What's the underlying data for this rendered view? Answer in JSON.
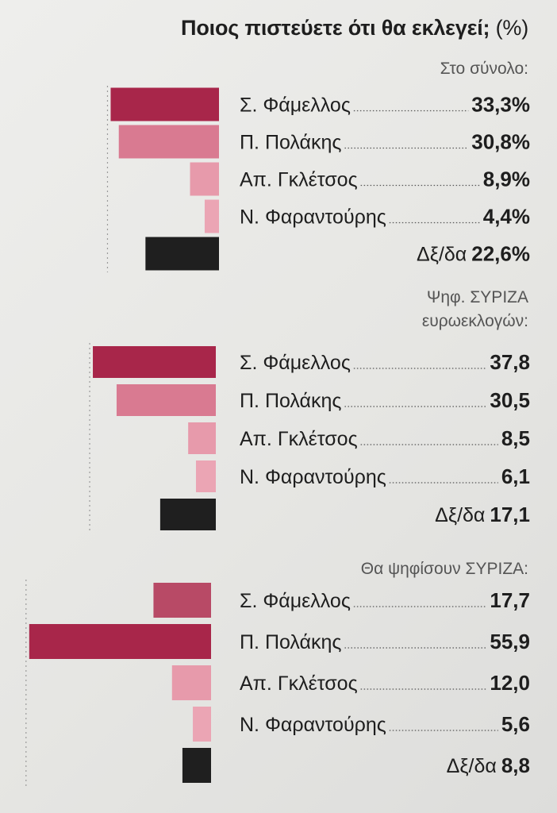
{
  "title": "Ποιος πιστεύετε ότι θα εκλεγεί;",
  "title_unit": "(%)",
  "colors": {
    "famellos": "#b84a66",
    "polakis": "#d97a91",
    "gkletsos": "#e79aab",
    "farantouris": "#eba5b4",
    "undecided": "#1f1f1f",
    "highlight": "#a8264a"
  },
  "chart_data": [
    {
      "type": "bar",
      "subtitle": [
        "Στο σύνολο:"
      ],
      "categories": [
        "Σ. Φάμελλος",
        "Π. Πολάκης",
        "Απ. Γκλέτσος",
        "Ν. Φαραντούρης",
        "Δξ/δα"
      ],
      "values": [
        33.3,
        30.8,
        8.9,
        4.4,
        22.6
      ],
      "value_labels": [
        "33,3%",
        "30,8%",
        "8,9%",
        "4,4%",
        "22,6%"
      ],
      "highlight_index": 0
    },
    {
      "type": "bar",
      "subtitle": [
        "Ψηφ. ΣΥΡΙΖΑ",
        "ευρωεκλογών:"
      ],
      "categories": [
        "Σ. Φάμελλος",
        "Π. Πολάκης",
        "Απ. Γκλέτσος",
        "Ν. Φαραντούρης",
        "Δξ/δα"
      ],
      "values": [
        37.8,
        30.5,
        8.5,
        6.1,
        17.1
      ],
      "value_labels": [
        "37,8",
        "30,5",
        "8,5",
        "6,1",
        "17,1"
      ],
      "highlight_index": 0
    },
    {
      "type": "bar",
      "subtitle": [
        "Θα ψηφίσουν ΣΥΡΙΖΑ:"
      ],
      "categories": [
        "Σ. Φάμελλος",
        "Π. Πολάκης",
        "Απ. Γκλέτσος",
        "Ν. Φαραντούρης",
        "Δξ/δα"
      ],
      "values": [
        17.7,
        55.9,
        12.0,
        5.6,
        8.8
      ],
      "value_labels": [
        "17,7",
        "55,9",
        "12,0",
        "5,6",
        "8,8"
      ],
      "highlight_index": 1
    }
  ]
}
